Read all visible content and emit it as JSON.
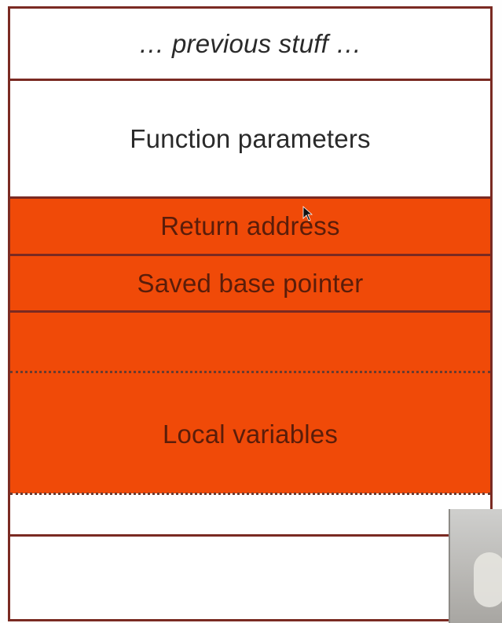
{
  "stack": {
    "cells": [
      {
        "id": "previous",
        "label": "… previous stuff …",
        "style": "white-italic"
      },
      {
        "id": "params",
        "label": "Function parameters",
        "style": "white"
      },
      {
        "id": "return",
        "label": "Return address",
        "style": "highlight"
      },
      {
        "id": "basepointer",
        "label": "Saved base pointer",
        "style": "highlight"
      },
      {
        "id": "locals",
        "label": "Local variables",
        "style": "highlight"
      },
      {
        "id": "empty1",
        "label": "",
        "style": "white"
      },
      {
        "id": "empty2",
        "label": "",
        "style": "white"
      }
    ]
  },
  "colors": {
    "highlight": "#f04a08",
    "border": "#7a2a22",
    "text": "#2a2a2a",
    "highlight_text": "#5a1d0a"
  },
  "icons": {
    "cursor": "mouse-pointer-icon"
  }
}
